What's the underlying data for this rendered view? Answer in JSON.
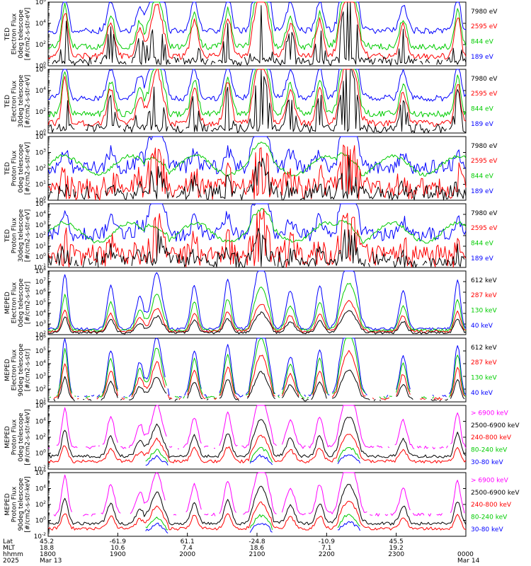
{
  "chart_data": [
    {
      "type": "line",
      "ylabel": [
        "TED",
        "Electron Flux",
        "0deg telescope",
        "[#/cm2-s-str-eV]"
      ],
      "y_log": true,
      "ylim_exp": [
        0,
        6
      ],
      "tick_exps": [
        0,
        2,
        4,
        6
      ],
      "profile": "ted_e",
      "series": [
        {
          "name": "7980 eV",
          "color": "#000000"
        },
        {
          "name": "2595 eV",
          "color": "#ff0000"
        },
        {
          "name": "844 eV",
          "color": "#00cc00"
        },
        {
          "name": "189 eV",
          "color": "#0000ff"
        }
      ]
    },
    {
      "type": "line",
      "ylabel": [
        "TED",
        "Electron Flux",
        "30deg telescope",
        "[#/cm2-s-str-eV]"
      ],
      "y_log": true,
      "ylim_exp": [
        0,
        6
      ],
      "tick_exps": [
        0,
        2,
        4,
        6
      ],
      "profile": "ted_e",
      "series": [
        {
          "name": "7980 eV",
          "color": "#000000"
        },
        {
          "name": "2595 eV",
          "color": "#ff0000"
        },
        {
          "name": "844 eV",
          "color": "#00cc00"
        },
        {
          "name": "189 eV",
          "color": "#0000ff"
        }
      ]
    },
    {
      "type": "line",
      "ylabel": [
        "TED",
        "Proton Flux",
        "0deg telescope",
        "[#/cm2-s-str-eV]"
      ],
      "y_log": true,
      "ylim_exp": [
        0,
        4
      ],
      "tick_exps": [
        0,
        1,
        2,
        3,
        4
      ],
      "profile": "ted_p",
      "series": [
        {
          "name": "7980 eV",
          "color": "#000000"
        },
        {
          "name": "2595 eV",
          "color": "#ff0000"
        },
        {
          "name": "844 eV",
          "color": "#00cc00"
        },
        {
          "name": "189 eV",
          "color": "#0000ff"
        }
      ]
    },
    {
      "type": "line",
      "ylabel": [
        "TED",
        "Proton Flux",
        "30deg telescope",
        "[#/cm2-s-str-eV]"
      ],
      "y_log": true,
      "ylim_exp": [
        -1,
        5
      ],
      "tick_exps": [
        -1,
        0,
        1,
        2,
        3,
        4,
        5
      ],
      "profile": "ted_p",
      "series": [
        {
          "name": "7980 eV",
          "color": "#000000"
        },
        {
          "name": "2595 eV",
          "color": "#ff0000"
        },
        {
          "name": "844 eV",
          "color": "#00cc00"
        },
        {
          "name": "189 eV",
          "color": "#0000ff"
        }
      ]
    },
    {
      "type": "line",
      "ylabel": [
        "MEPED",
        "Electron Flux",
        "0deg telescope",
        "[#/cm2-s-str]"
      ],
      "y_log": true,
      "ylim_exp": [
        2,
        8
      ],
      "tick_exps": [
        2,
        3,
        4,
        5,
        6,
        7,
        8
      ],
      "profile": "meped_e0",
      "series": [
        {
          "name": "612 keV",
          "color": "#000000"
        },
        {
          "name": "287 keV",
          "color": "#ff0000"
        },
        {
          "name": "130 keV",
          "color": "#00cc00"
        },
        {
          "name": "40 keV",
          "color": "#0000ff"
        }
      ]
    },
    {
      "type": "line",
      "ylabel": [
        "MEPED",
        "Electron Flux",
        "90deg telescope",
        "[#/cm2-s-str]"
      ],
      "y_log": true,
      "ylim_exp": [
        1,
        6
      ],
      "tick_exps": [
        1,
        2,
        3,
        4,
        5,
        6
      ],
      "profile": "meped_e90",
      "series": [
        {
          "name": "612 keV",
          "color": "#000000"
        },
        {
          "name": "287 keV",
          "color": "#ff0000"
        },
        {
          "name": "130 keV",
          "color": "#00cc00"
        },
        {
          "name": "40 keV",
          "color": "#0000ff"
        }
      ]
    },
    {
      "type": "line",
      "ylabel": [
        "MEPED",
        "Proton Flux",
        "0deg telescope",
        "[#/cm2-s-str-keV]"
      ],
      "y_log": true,
      "ylim_exp": [
        -2,
        6
      ],
      "tick_exps": [
        -2,
        0,
        2,
        4,
        6
      ],
      "profile": "meped_p",
      "series": [
        {
          "name": "> 6900 keV",
          "color": "#ff00ff"
        },
        {
          "name": "2500-6900 keV",
          "color": "#000000"
        },
        {
          "name": "240-800 keV",
          "color": "#ff0000"
        },
        {
          "name": "80-240 keV",
          "color": "#00cc00"
        },
        {
          "name": "30-80 keV",
          "color": "#0000ff"
        }
      ]
    },
    {
      "type": "line",
      "ylabel": [
        "MEPED",
        "Proton Flux",
        "90deg telescope",
        "[#/cm2-s-str-keV]"
      ],
      "y_log": true,
      "ylim_exp": [
        -2,
        6
      ],
      "tick_exps": [
        -2,
        0,
        2,
        4,
        6
      ],
      "profile": "meped_p",
      "series": [
        {
          "name": "> 6900 keV",
          "color": "#ff00ff"
        },
        {
          "name": "2500-6900 keV",
          "color": "#000000"
        },
        {
          "name": "240-800 keV",
          "color": "#ff0000"
        },
        {
          "name": "80-240 keV",
          "color": "#00cc00"
        },
        {
          "name": "30-80 keV",
          "color": "#0000ff"
        }
      ]
    }
  ],
  "x_axis": {
    "row_labels": [
      "Lat",
      "MLT",
      "hhmm",
      "2025"
    ],
    "time_start_hhmm": "1800",
    "time_end_hhmm": "0000",
    "columns": [
      {
        "lat": "45.2",
        "mlt": "18.8",
        "hhmm": "1800",
        "date": "Mar 13"
      },
      {
        "lat": "-61.9",
        "mlt": "10.6",
        "hhmm": "1900",
        "date": ""
      },
      {
        "lat": "61.1",
        "mlt": "7.4",
        "hhmm": "2000",
        "date": ""
      },
      {
        "lat": "-24.8",
        "mlt": "18.6",
        "hhmm": "2100",
        "date": ""
      },
      {
        "lat": "-10.9",
        "mlt": "7.1",
        "hhmm": "2200",
        "date": ""
      },
      {
        "lat": "45.5",
        "mlt": "19.2",
        "hhmm": "2300",
        "date": ""
      },
      {
        "lat": "",
        "mlt": "",
        "hhmm": "0000",
        "date": "Mar 14"
      }
    ]
  }
}
